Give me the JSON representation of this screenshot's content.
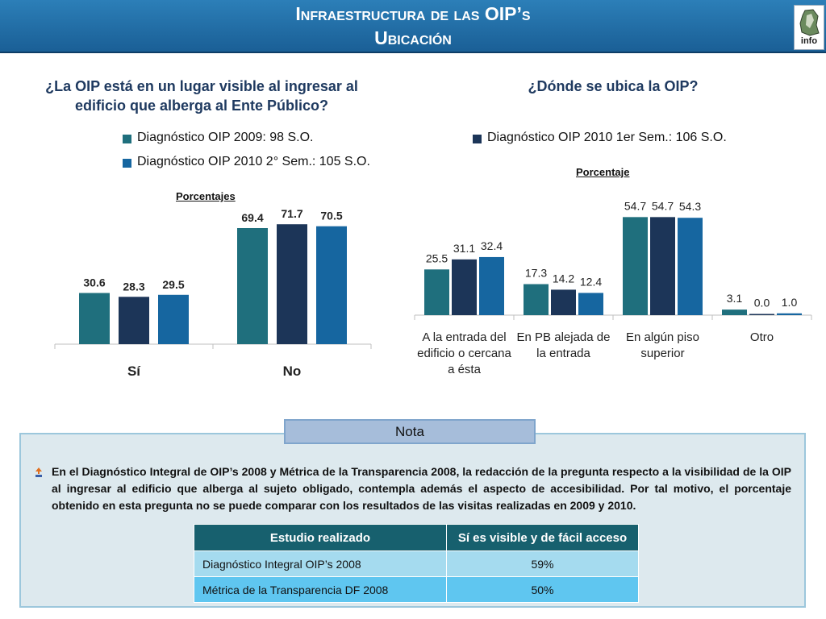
{
  "header": {
    "title_line1": "Infraestructura de las OIP’s",
    "title_line2": "Ubicación",
    "logo_text": "info"
  },
  "left": {
    "question": "¿La OIP está en un lugar visible al ingresar al edificio que alberga al Ente Público?",
    "legend": [
      "Diagnóstico OIP 2009: 98 S.O.",
      "Diagnóstico OIP 2010 2° Sem.: 105 S.O."
    ],
    "plot_title": "Porcentajes"
  },
  "right": {
    "question": "¿Dónde se ubica la OIP?",
    "legend": [
      "Diagnóstico OIP 2010 1er Sem.: 106 S.O."
    ],
    "plot_title": "Porcentaje"
  },
  "colors": {
    "series_2009": "#1f6f7d",
    "series_2010_1": "#1c3558",
    "series_2010_2": "#1666a0",
    "header": "#1f6aa8"
  },
  "chart_data": [
    {
      "type": "bar",
      "title": "¿La OIP está en un lugar visible al ingresar al edificio que alberga al Ente Público?",
      "ylabel": "Porcentajes",
      "categories": [
        "Sí",
        "No"
      ],
      "series": [
        {
          "name": "Diagnóstico OIP 2009: 98 S.O.",
          "values": [
            30.6,
            69.4
          ],
          "labels": [
            "30.6",
            "69.4"
          ]
        },
        {
          "name": "Diagnóstico OIP 2010 1er Sem.: 106 S.O.",
          "values": [
            28.3,
            71.7
          ],
          "labels": [
            "28.3",
            "71.7"
          ]
        },
        {
          "name": "Diagnóstico OIP 2010 2° Sem.: 105 S.O.",
          "values": [
            29.5,
            70.5
          ],
          "labels": [
            "29.5",
            "70.5"
          ]
        }
      ],
      "ylim": [
        0,
        80
      ]
    },
    {
      "type": "bar",
      "title": "¿Dónde se ubica la OIP?",
      "ylabel": "Porcentaje",
      "categories": [
        [
          "A la entrada del",
          "edificio o cercana",
          "a ésta"
        ],
        [
          "En PB alejada de",
          "la entrada"
        ],
        [
          "En algún piso",
          "superior"
        ],
        [
          "Otro"
        ]
      ],
      "series": [
        {
          "name": "Diagnóstico OIP 2009: 98 S.O.",
          "values": [
            25.5,
            17.3,
            54.7,
            3.1
          ],
          "labels": [
            "25.5",
            "17.3",
            "54.7",
            "3.1"
          ]
        },
        {
          "name": "Diagnóstico OIP 2010 1er Sem.: 106 S.O.",
          "values": [
            31.1,
            14.2,
            54.7,
            0.0
          ],
          "labels": [
            "31.1",
            "14.2",
            "54.7",
            "0.0"
          ]
        },
        {
          "name": "Diagnóstico OIP 2010 2° Sem.: 105 S.O.",
          "values": [
            32.4,
            12.4,
            54.3,
            1.0
          ],
          "labels": [
            "32.4",
            "12.4",
            "54.3",
            "1.0"
          ]
        }
      ],
      "ylim": [
        0,
        58
      ]
    }
  ],
  "nota": {
    "title": "Nota",
    "text": "En el Diagnóstico Integral de OIP’s 2008 y Métrica de la Transparencia 2008, la redacción de la pregunta respecto a la visibilidad de la OIP al ingresar al edificio que alberga al sujeto obligado, contempla además el aspecto de accesibilidad. Por tal motivo, el porcentaje obtenido en esta pregunta no se puede comparar con los resultados de las visitas realizadas en 2009 y 2010.",
    "table": {
      "headers": [
        "Estudio realizado",
        "Sí es visible y de fácil acceso"
      ],
      "rows": [
        [
          "Diagnóstico Integral OIP’s 2008",
          "59%"
        ],
        [
          "Métrica de la Transparencia DF 2008",
          "50%"
        ]
      ]
    }
  }
}
